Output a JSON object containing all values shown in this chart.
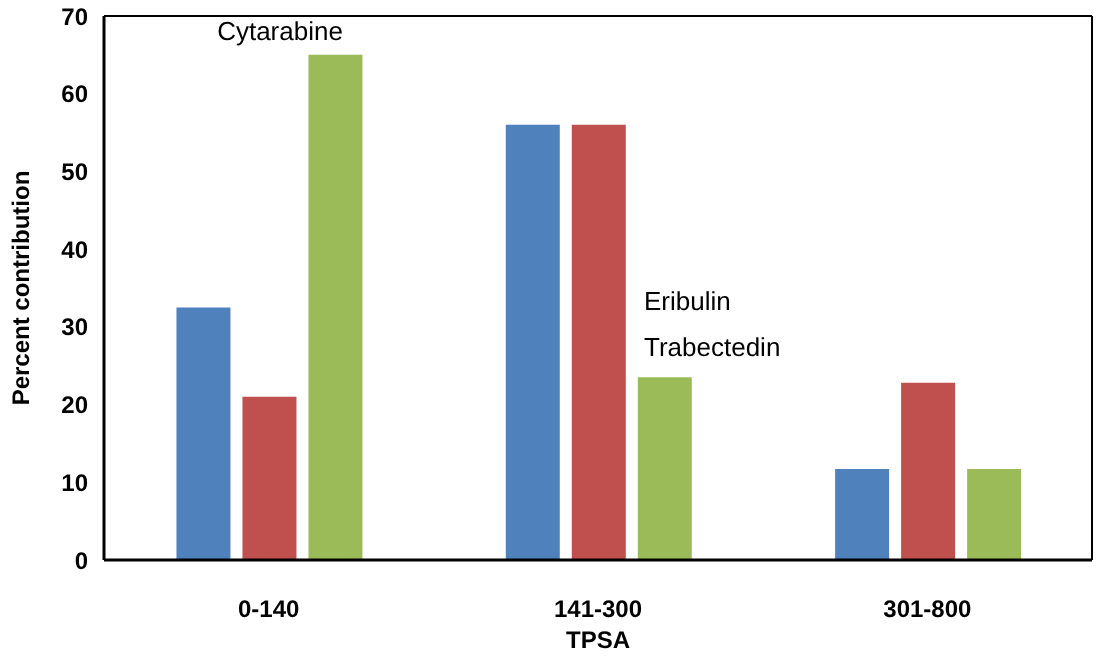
{
  "chart_data": {
    "type": "bar",
    "xlabel": "TPSA",
    "ylabel": "Percent contribution",
    "categories": [
      "0-140",
      "141-300",
      "301-800"
    ],
    "series": [
      {
        "color": "#4f81bd",
        "values": [
          32.5,
          56,
          11.7
        ]
      },
      {
        "color": "#c0504d",
        "values": [
          21,
          56,
          22.8
        ]
      },
      {
        "color": "#9bbb59",
        "values": [
          65,
          23.5,
          11.7
        ]
      }
    ],
    "ylim": [
      0,
      70
    ],
    "yticks": [
      0,
      10,
      20,
      30,
      40,
      50,
      60,
      70
    ],
    "grid": false,
    "legend": false,
    "annotations": [
      "Cytarabine",
      "Eribulin",
      "Trabectedin"
    ]
  }
}
